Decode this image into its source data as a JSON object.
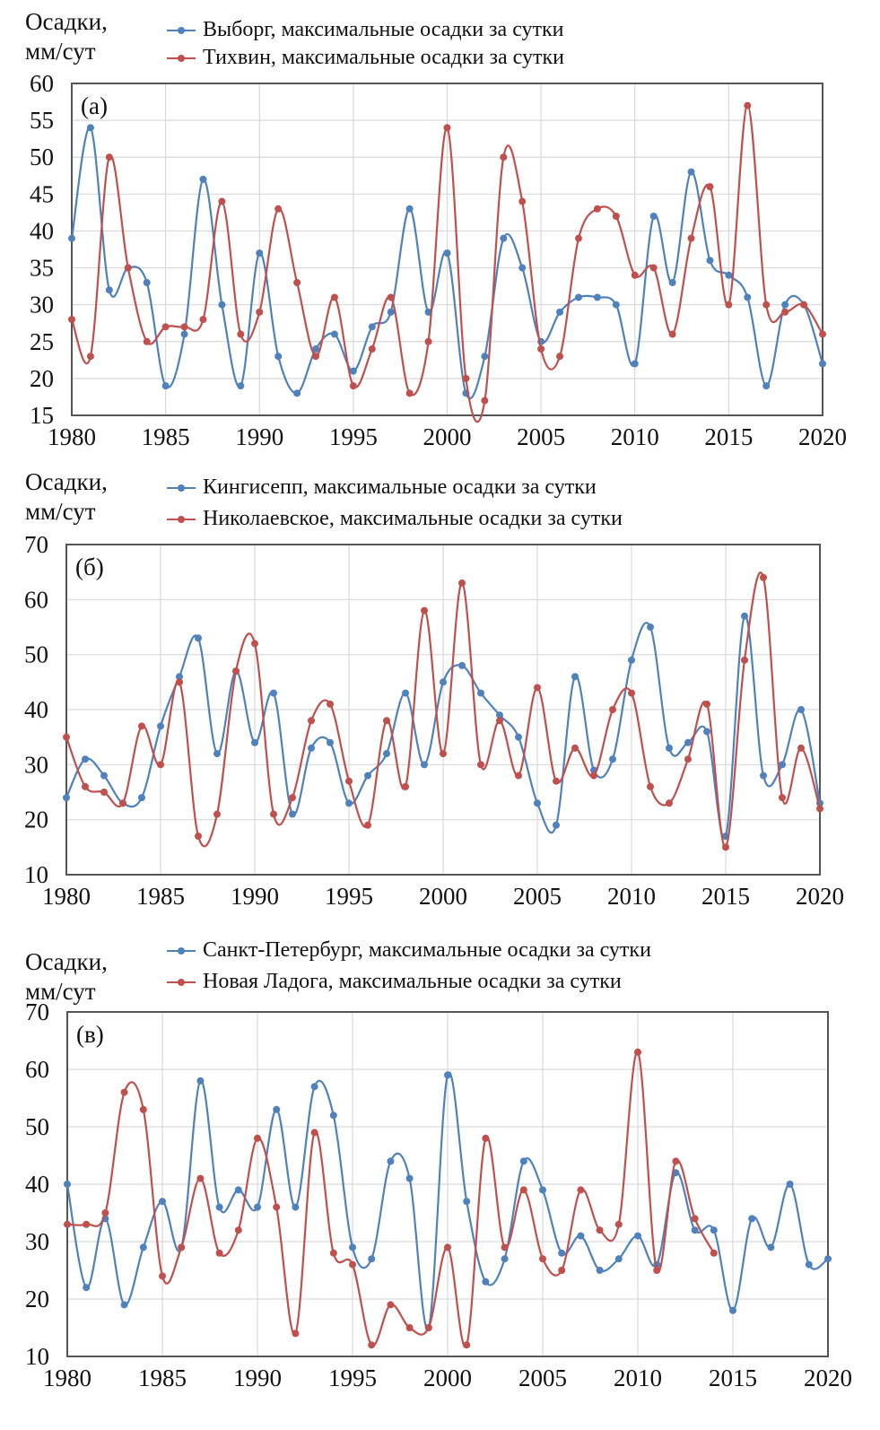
{
  "colors": {
    "series_1": "#4f81bd",
    "series_2": "#c0504d",
    "grid": "#d9d9d9",
    "frame": "#555555"
  },
  "chart_data": [
    {
      "type": "line",
      "panel_label": "(a)",
      "ylabel_lines": [
        "Осадки,",
        "мм/сут"
      ],
      "xlabel": "",
      "xlim": [
        1980,
        2020
      ],
      "xticks": [
        1980,
        1985,
        1990,
        1995,
        2000,
        2005,
        2010,
        2015,
        2020
      ],
      "ylim": [
        15,
        60
      ],
      "yticks": [
        15,
        20,
        25,
        30,
        35,
        40,
        45,
        50,
        55,
        60
      ],
      "grid": true,
      "legend": "top",
      "smooth": true,
      "x_start": 1980,
      "series": [
        {
          "name": "Выборг, максимальные осадки за сутки",
          "values": [
            39,
            54,
            32,
            35,
            33,
            19,
            26,
            47,
            30,
            19,
            37,
            23,
            18,
            24,
            26,
            21,
            27,
            29,
            43,
            29,
            37,
            18,
            23,
            39,
            35,
            25,
            29,
            31,
            31,
            30,
            22,
            42,
            33,
            48,
            36,
            34,
            31,
            19,
            30,
            30,
            22
          ]
        },
        {
          "name": "Тихвин, максимальные осадки за сутки",
          "values": [
            28,
            23,
            50,
            35,
            25,
            27,
            27,
            28,
            44,
            26,
            29,
            43,
            33,
            23,
            31,
            19,
            24,
            31,
            18,
            25,
            54,
            20,
            17,
            50,
            44,
            24,
            23,
            39,
            43,
            42,
            34,
            35,
            26,
            39,
            46,
            30,
            57,
            30,
            29,
            30,
            26
          ]
        }
      ]
    },
    {
      "type": "line",
      "panel_label": "(б)",
      "ylabel_lines": [
        "Осадки,",
        "мм/сут"
      ],
      "xlabel": "",
      "xlim": [
        1980,
        2020
      ],
      "xticks": [
        1980,
        1985,
        1990,
        1995,
        2000,
        2005,
        2010,
        2015,
        2020
      ],
      "ylim": [
        10,
        70
      ],
      "yticks": [
        10,
        20,
        30,
        40,
        50,
        60,
        70
      ],
      "grid": true,
      "legend": "top",
      "smooth": true,
      "x_start": 1980,
      "series": [
        {
          "name": "Кингисепп, максимальные осадки за сутки",
          "values": [
            24,
            31,
            28,
            23,
            24,
            37,
            46,
            53,
            32,
            47,
            34,
            43,
            21,
            33,
            34,
            23,
            28,
            32,
            43,
            30,
            45,
            48,
            43,
            39,
            35,
            23,
            19,
            46,
            29,
            31,
            49,
            55,
            33,
            34,
            36,
            17,
            57,
            28,
            30,
            40,
            23
          ]
        },
        {
          "name": "Николаевское, максимальные осадки за сутки",
          "values": [
            35,
            26,
            25,
            23,
            37,
            30,
            45,
            17,
            21,
            47,
            52,
            21,
            24,
            38,
            41,
            27,
            19,
            38,
            26,
            58,
            32,
            63,
            30,
            38,
            28,
            44,
            27,
            33,
            28,
            40,
            43,
            26,
            23,
            31,
            41,
            15,
            49,
            64,
            24,
            33,
            22
          ]
        }
      ]
    },
    {
      "type": "line",
      "panel_label": "(в)",
      "ylabel_lines": [
        "Осадки,",
        "мм/сут"
      ],
      "xlabel": "",
      "xlim": [
        1980,
        2020
      ],
      "xticks": [
        1980,
        1985,
        1990,
        1995,
        2000,
        2005,
        2010,
        2015,
        2020
      ],
      "ylim": [
        10,
        70
      ],
      "yticks": [
        10,
        20,
        30,
        40,
        50,
        60,
        70
      ],
      "grid": true,
      "legend": "top",
      "smooth": true,
      "x_start": 1980,
      "series": [
        {
          "name": "Санкт-Петербург, максимальные осадки за сутки",
          "values": [
            40,
            22,
            34,
            19,
            29,
            37,
            29,
            58,
            36,
            39,
            36,
            53,
            36,
            57,
            52,
            29,
            27,
            44,
            41,
            15,
            59,
            37,
            23,
            27,
            44,
            39,
            28,
            31,
            25,
            27,
            31,
            26,
            42,
            32,
            32,
            18,
            34,
            29,
            40,
            26,
            27
          ]
        },
        {
          "name": "Новая Ладога, максимальные осадки за сутки",
          "values": [
            33,
            33,
            35,
            56,
            53,
            24,
            29,
            41,
            28,
            32,
            48,
            36,
            14,
            49,
            28,
            26,
            12,
            19,
            15,
            15,
            29,
            12,
            48,
            29,
            39,
            27,
            25,
            39,
            32,
            33,
            63,
            25,
            44,
            34,
            28
          ]
        }
      ]
    }
  ]
}
